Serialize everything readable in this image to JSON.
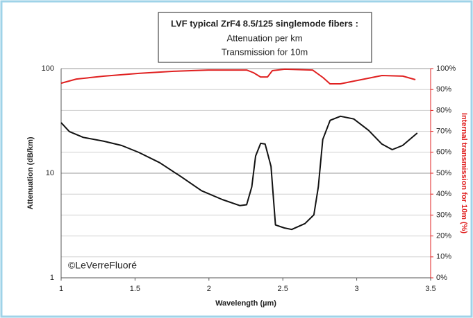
{
  "chart_data": {
    "type": "line",
    "title": [
      "LVF typical ZrF4 8.5/125 singlemode fibers :",
      "Attenuation per km",
      "Transmission for 10m"
    ],
    "xlabel": "Wavelength (µm)",
    "ylabel": "Attenuation (dB/km)",
    "y2label": "Internal transmission for 10m (%)",
    "annotation": "©LeVerreFluoré",
    "log_y": true,
    "xlim": [
      1,
      3.5
    ],
    "xticks": [
      1,
      1.5,
      2,
      2.5,
      3,
      3.5
    ],
    "ylim": [
      1,
      100
    ],
    "yticks": [
      1,
      10,
      100
    ],
    "y2lim": [
      0,
      100
    ],
    "y2ticks": [
      {
        "value": 0,
        "label": "0%"
      },
      {
        "value": 10,
        "label": "10%"
      },
      {
        "value": 20,
        "label": "20%"
      },
      {
        "value": 30,
        "label": "30%"
      },
      {
        "value": 40,
        "label": "40%"
      },
      {
        "value": 50,
        "label": "50%"
      },
      {
        "value": 60,
        "label": "60%"
      },
      {
        "value": 70,
        "label": "70%"
      },
      {
        "value": 80,
        "label": "80%"
      },
      {
        "value": 90,
        "label": "90%"
      },
      {
        "value": 100,
        "label": "100%"
      }
    ],
    "y2color": "#e02020",
    "grid": true,
    "series": [
      {
        "color": "#111111",
        "axis": "y",
        "x": [
          1.0,
          1.056,
          1.15,
          1.29,
          1.41,
          1.526,
          1.667,
          1.81,
          1.95,
          2.09,
          2.21,
          2.255,
          2.29,
          2.316,
          2.35,
          2.38,
          2.42,
          2.45,
          2.51,
          2.56,
          2.65,
          2.71,
          2.74,
          2.77,
          2.82,
          2.89,
          2.98,
          3.08,
          3.17,
          3.24,
          3.31,
          3.41
        ],
        "values": [
          30.4,
          25,
          22,
          20.2,
          18.4,
          15.8,
          12.6,
          9.3,
          6.8,
          5.6,
          4.9,
          5.0,
          7.4,
          14.6,
          19.3,
          19,
          11.6,
          3.2,
          3.0,
          2.9,
          3.3,
          4.0,
          7.4,
          21,
          32,
          35,
          33,
          25.7,
          19,
          16.8,
          18.4,
          24.2
        ]
      },
      {
        "color": "#e02020",
        "axis": "y2",
        "x": [
          1.0,
          1.103,
          1.291,
          1.526,
          1.761,
          1.996,
          2.255,
          2.302,
          2.349,
          2.396,
          2.429,
          2.513,
          2.701,
          2.772,
          2.819,
          2.889,
          3.03,
          3.171,
          3.312,
          3.397
        ],
        "values": [
          93,
          95,
          96.4,
          97.7,
          98.7,
          99.3,
          99.3,
          98,
          96,
          96,
          99,
          99.7,
          99.3,
          95.7,
          92.7,
          92.7,
          94.7,
          96.7,
          96.4,
          94.7
        ]
      }
    ]
  }
}
